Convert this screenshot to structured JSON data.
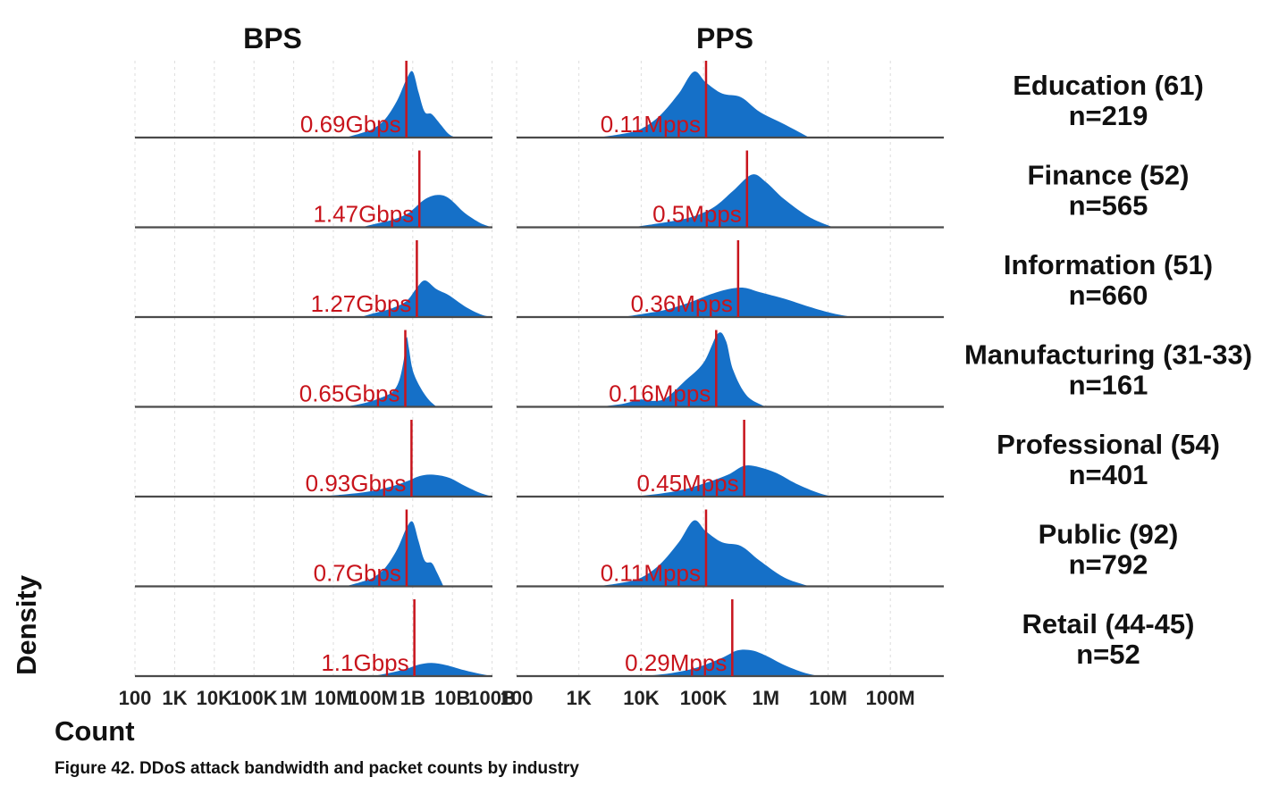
{
  "caption": "Figure 42. DDoS attack bandwidth and packet counts by industry",
  "chart_data": {
    "type": "area",
    "subtype": "ridgeline-density",
    "xlabel": "Count",
    "ylabel": "Density",
    "x_scale": "log10",
    "grid": true,
    "colors": {
      "fill": "#1570c8",
      "median": "#c8141c",
      "baseline": "#4a4a4a",
      "grid": "#dddddd"
    },
    "panels": [
      {
        "id": "bps",
        "title": "BPS",
        "xlim": [
          100,
          100000000000
        ],
        "ticks": [
          {
            "value": 100,
            "label": "100"
          },
          {
            "value": 1000,
            "label": "1K"
          },
          {
            "value": 10000,
            "label": "10K"
          },
          {
            "value": 100000,
            "label": "100K"
          },
          {
            "value": 1000000,
            "label": "1M"
          },
          {
            "value": 10000000,
            "label": "10M"
          },
          {
            "value": 100000000,
            "label": "100M"
          },
          {
            "value": 1000000000,
            "label": "1B"
          },
          {
            "value": 10000000000,
            "label": "10B"
          },
          {
            "value": 100000000000,
            "label": "100B"
          }
        ]
      },
      {
        "id": "pps",
        "title": "PPS",
        "xlim": [
          100,
          1000000000
        ],
        "ticks": [
          {
            "value": 100,
            "label": "100"
          },
          {
            "value": 1000,
            "label": "1K"
          },
          {
            "value": 10000,
            "label": "10K"
          },
          {
            "value": 100000,
            "label": "100K"
          },
          {
            "value": 1000000,
            "label": "1M"
          },
          {
            "value": 10000000,
            "label": "10M"
          },
          {
            "value": 100000000,
            "label": "100M"
          }
        ]
      }
    ],
    "rows": [
      {
        "name": "Education (61)",
        "n": "n=219",
        "bps": {
          "median": 690000000,
          "median_label": "0.69Gbps",
          "density": [
            [
              20000000,
              0
            ],
            [
              50000000,
              0.06
            ],
            [
              100000000,
              0.12
            ],
            [
              200000000,
              0.25
            ],
            [
              400000000,
              0.5
            ],
            [
              700000000,
              0.8
            ],
            [
              1000000000,
              0.9
            ],
            [
              1400000000,
              0.62
            ],
            [
              2000000000,
              0.35
            ],
            [
              3000000000,
              0.32
            ],
            [
              5000000000,
              0.18
            ],
            [
              8000000000,
              0.05
            ],
            [
              12000000000,
              0
            ]
          ]
        },
        "pps": {
          "median": 110000,
          "median_label": "0.11Mpps",
          "density": [
            [
              2000,
              0
            ],
            [
              5000,
              0.05
            ],
            [
              10000,
              0.12
            ],
            [
              20000,
              0.3
            ],
            [
              40000,
              0.6
            ],
            [
              70000,
              0.9
            ],
            [
              110000,
              0.75
            ],
            [
              200000,
              0.6
            ],
            [
              400000,
              0.55
            ],
            [
              800000,
              0.35
            ],
            [
              2000000,
              0.18
            ],
            [
              5000000,
              0
            ]
          ]
        }
      },
      {
        "name": "Finance (52)",
        "n": "n=565",
        "bps": {
          "median": 1470000000,
          "median_label": "1.47Gbps",
          "density": [
            [
              50000000,
              0
            ],
            [
              100000000,
              0.04
            ],
            [
              300000000,
              0.1
            ],
            [
              700000000,
              0.18
            ],
            [
              1000000000,
              0.24
            ],
            [
              2000000000,
              0.38
            ],
            [
              4000000000,
              0.44
            ],
            [
              8000000000,
              0.4
            ],
            [
              20000000000,
              0.2
            ],
            [
              50000000000,
              0.06
            ],
            [
              100000000000,
              0
            ]
          ]
        },
        "pps": {
          "median": 500000,
          "median_label": "0.5Mpps",
          "density": [
            [
              7000,
              0
            ],
            [
              15000,
              0.04
            ],
            [
              30000,
              0.08
            ],
            [
              70000,
              0.15
            ],
            [
              150000,
              0.28
            ],
            [
              300000,
              0.5
            ],
            [
              600000,
              0.72
            ],
            [
              1000000,
              0.62
            ],
            [
              2000000,
              0.38
            ],
            [
              5000000,
              0.14
            ],
            [
              12000000,
              0
            ]
          ]
        }
      },
      {
        "name": "Information (51)",
        "n": "n=660",
        "bps": {
          "median": 1270000000,
          "median_label": "1.27Gbps",
          "density": [
            [
              50000000,
              0
            ],
            [
              100000000,
              0.05
            ],
            [
              300000000,
              0.12
            ],
            [
              700000000,
              0.22
            ],
            [
              1200000000,
              0.38
            ],
            [
              2000000000,
              0.5
            ],
            [
              4000000000,
              0.38
            ],
            [
              8000000000,
              0.3
            ],
            [
              20000000000,
              0.15
            ],
            [
              50000000000,
              0.04
            ],
            [
              100000000000,
              0
            ]
          ]
        },
        "pps": {
          "median": 360000,
          "median_label": "0.36Mpps",
          "density": [
            [
              5000,
              0
            ],
            [
              12000,
              0.05
            ],
            [
              25000,
              0.1
            ],
            [
              60000,
              0.2
            ],
            [
              120000,
              0.3
            ],
            [
              250000,
              0.38
            ],
            [
              450000,
              0.4
            ],
            [
              800000,
              0.34
            ],
            [
              2000000,
              0.25
            ],
            [
              5000000,
              0.14
            ],
            [
              12000000,
              0.05
            ],
            [
              25000000,
              0
            ]
          ]
        }
      },
      {
        "name": "Manufacturing (31-33)",
        "n": "n=161",
        "bps": {
          "median": 650000000,
          "median_label": "0.65Gbps",
          "density": [
            [
              20000000,
              0
            ],
            [
              60000000,
              0.05
            ],
            [
              150000000,
              0.12
            ],
            [
              300000000,
              0.2
            ],
            [
              450000000,
              0.35
            ],
            [
              600000000,
              0.65
            ],
            [
              700000000,
              0.95
            ],
            [
              800000000,
              0.8
            ],
            [
              1000000000,
              0.5
            ],
            [
              1500000000,
              0.28
            ],
            [
              2500000000,
              0.1
            ],
            [
              4000000000,
              0
            ]
          ]
        },
        "pps": {
          "median": 160000,
          "median_label": "0.16Mpps",
          "density": [
            [
              2000,
              0
            ],
            [
              5000,
              0.04
            ],
            [
              10000,
              0.1
            ],
            [
              15000,
              0.08
            ],
            [
              25000,
              0.12
            ],
            [
              50000,
              0.35
            ],
            [
              100000,
              0.6
            ],
            [
              170000,
              1.0
            ],
            [
              230000,
              0.9
            ],
            [
              300000,
              0.5
            ],
            [
              500000,
              0.15
            ],
            [
              1000000,
              0
            ]
          ]
        }
      },
      {
        "name": "Professional (54)",
        "n": "n=401",
        "bps": {
          "median": 930000000,
          "median_label": "0.93Gbps",
          "density": [
            [
              4000000,
              0
            ],
            [
              20000000,
              0.03
            ],
            [
              80000000,
              0.07
            ],
            [
              300000000,
              0.14
            ],
            [
              800000000,
              0.22
            ],
            [
              1500000000,
              0.28
            ],
            [
              3000000000,
              0.3
            ],
            [
              8000000000,
              0.26
            ],
            [
              20000000000,
              0.15
            ],
            [
              50000000000,
              0.05
            ],
            [
              100000000000,
              0
            ]
          ]
        },
        "pps": {
          "median": 450000,
          "median_label": "0.45Mpps",
          "density": [
            [
              7000,
              0
            ],
            [
              20000,
              0.04
            ],
            [
              50000,
              0.1
            ],
            [
              120000,
              0.2
            ],
            [
              250000,
              0.3
            ],
            [
              450000,
              0.42
            ],
            [
              800000,
              0.4
            ],
            [
              1500000,
              0.32
            ],
            [
              3000000,
              0.18
            ],
            [
              7000000,
              0.05
            ],
            [
              12000000,
              0
            ]
          ]
        }
      },
      {
        "name": "Public (92)",
        "n": "n=792",
        "bps": {
          "median": 700000000,
          "median_label": "0.7Gbps",
          "density": [
            [
              20000000,
              0
            ],
            [
              50000000,
              0.06
            ],
            [
              100000000,
              0.12
            ],
            [
              200000000,
              0.25
            ],
            [
              400000000,
              0.5
            ],
            [
              700000000,
              0.8
            ],
            [
              1000000000,
              0.88
            ],
            [
              1400000000,
              0.62
            ],
            [
              2000000000,
              0.35
            ],
            [
              3000000000,
              0.32
            ],
            [
              4000000000,
              0.2
            ],
            [
              6000000000,
              0
            ]
          ]
        },
        "pps": {
          "median": 110000,
          "median_label": "0.11Mpps",
          "density": [
            [
              2000,
              0
            ],
            [
              5000,
              0.05
            ],
            [
              10000,
              0.12
            ],
            [
              20000,
              0.3
            ],
            [
              40000,
              0.6
            ],
            [
              70000,
              0.9
            ],
            [
              110000,
              0.75
            ],
            [
              200000,
              0.6
            ],
            [
              400000,
              0.55
            ],
            [
              800000,
              0.35
            ],
            [
              2000000,
              0.12
            ],
            [
              5000000,
              0
            ]
          ]
        }
      },
      {
        "name": "Retail (44-45)",
        "n": "n=52",
        "bps": {
          "median": 1100000000,
          "median_label": "1.1Gbps",
          "density": [
            [
              100000000,
              0
            ],
            [
              300000000,
              0.05
            ],
            [
              700000000,
              0.1
            ],
            [
              1500000000,
              0.16
            ],
            [
              3000000000,
              0.18
            ],
            [
              7000000000,
              0.15
            ],
            [
              20000000000,
              0.08
            ],
            [
              50000000000,
              0.03
            ],
            [
              100000000000,
              0
            ]
          ]
        },
        "pps": {
          "median": 290000,
          "median_label": "0.29Mpps",
          "density": [
            [
              10000,
              0
            ],
            [
              30000,
              0.04
            ],
            [
              80000,
              0.12
            ],
            [
              200000,
              0.25
            ],
            [
              350000,
              0.35
            ],
            [
              600000,
              0.35
            ],
            [
              1000000,
              0.28
            ],
            [
              2000000,
              0.15
            ],
            [
              4000000,
              0.05
            ],
            [
              7000000,
              0
            ]
          ]
        }
      }
    ]
  }
}
